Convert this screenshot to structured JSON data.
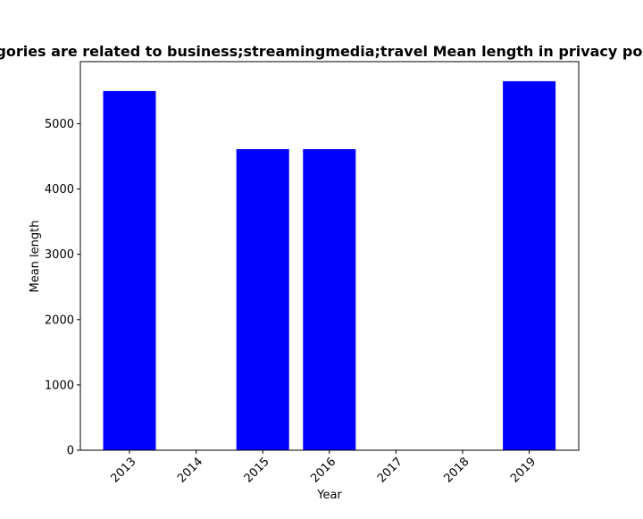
{
  "chart_data": {
    "type": "bar",
    "title": "Categories are related to business;streamingmedia;travel Mean length in privacy policies",
    "xlabel": "Year",
    "ylabel": "Mean length",
    "categories": [
      "2013",
      "2014",
      "2015",
      "2016",
      "2017",
      "2018",
      "2019"
    ],
    "values": [
      5500,
      0,
      4610,
      4610,
      0,
      0,
      5650
    ],
    "ylim": [
      0,
      5950
    ],
    "yticks": [
      "0",
      "1000",
      "2000",
      "3000",
      "4000",
      "5000"
    ],
    "bar_color": "#0000ff",
    "grid": false,
    "legend": "none"
  }
}
